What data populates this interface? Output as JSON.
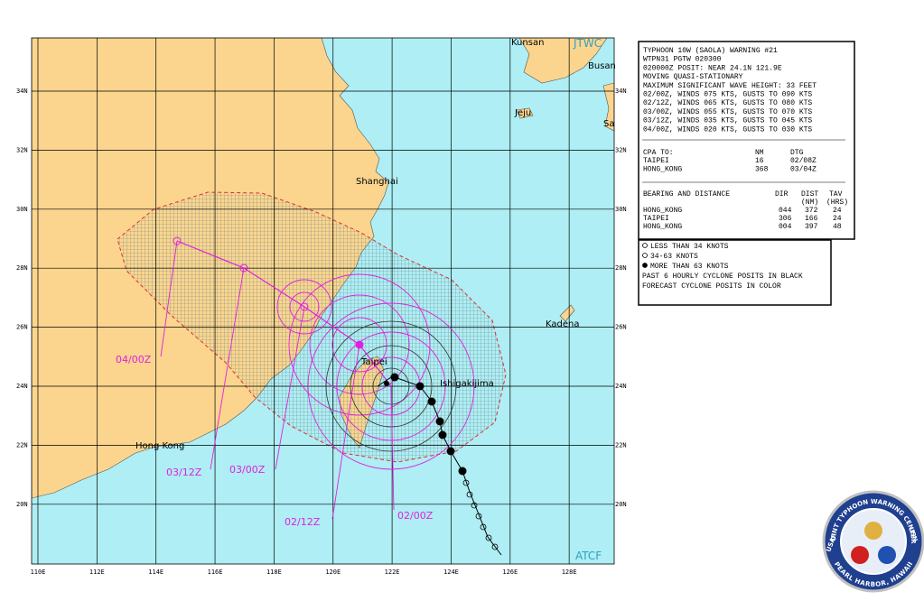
{
  "map": {
    "places": [
      "Kunsan",
      "Busan",
      "Jeju",
      "Sa",
      "Shanghai",
      "Taipei",
      "Ishigakijima",
      "Kadena",
      "Hong Kong"
    ],
    "agency_labels": [
      "JTWC",
      "ATCF"
    ],
    "lat_labels": [
      "34N",
      "32N",
      "30N",
      "28N",
      "26N",
      "24N",
      "22N",
      "20N"
    ],
    "lon_labels": [
      "110E",
      "112E",
      "114E",
      "116E",
      "118E",
      "120E",
      "122E",
      "124E",
      "126E",
      "128E"
    ],
    "forecast_labels": [
      "04/00Z",
      "03/12Z",
      "03/00Z",
      "02/12Z",
      "02/00Z"
    ]
  },
  "warning": {
    "lines": [
      "TYPHOON 10W (SAOLA) WARNING #21",
      "WTPN31 PGTW 020300",
      "020000Z POSIT: NEAR 24.1N 121.9E",
      "MOVING QUASI-STATIONARY",
      "MAXIMUM SIGNIFICANT WAVE HEIGHT: 33 FEET",
      "02/00Z, WINDS 075 KTS, GUSTS TO 090 KTS",
      "02/12Z, WINDS 065 KTS, GUSTS TO 080 KTS",
      "03/00Z, WINDS 055 KTS, GUSTS TO 070 KTS",
      "03/12Z, WINDS 035 KTS, GUSTS TO 045 KTS",
      "04/00Z, WINDS 020 KTS, GUSTS TO 030 KTS"
    ],
    "cpa": {
      "header": [
        "CPA TO:",
        "NM",
        "DTG"
      ],
      "rows": [
        [
          "TAIPEI",
          "16",
          "02/08Z"
        ],
        [
          "HONG_KONG",
          "368",
          "03/04Z"
        ]
      ]
    },
    "bearing": {
      "header": [
        "BEARING AND DISTANCE",
        "DIR",
        "DIST",
        "TAV"
      ],
      "subheader": [
        "(NM)",
        "(HRS)"
      ],
      "rows": [
        [
          "HONG_KONG",
          "044",
          "372",
          "24"
        ],
        [
          "TAIPEI",
          "306",
          "166",
          "24"
        ],
        [
          "HONG_KONG",
          "004",
          "397",
          "48"
        ]
      ]
    }
  },
  "legend": [
    "LESS THAN 34 KNOTS",
    "34-63 KNOTS",
    "MORE THAN 63 KNOTS",
    "PAST 6 HOURLY CYCLONE POSITS IN BLACK",
    "FORECAST CYCLONE POSITS IN COLOR"
  ],
  "logo": {
    "top": "JOINT TYPHOON WARNING CENTER",
    "bottom": "PEARL HARBOR, HAWAII",
    "left": "USAF",
    "right": "USN"
  }
}
